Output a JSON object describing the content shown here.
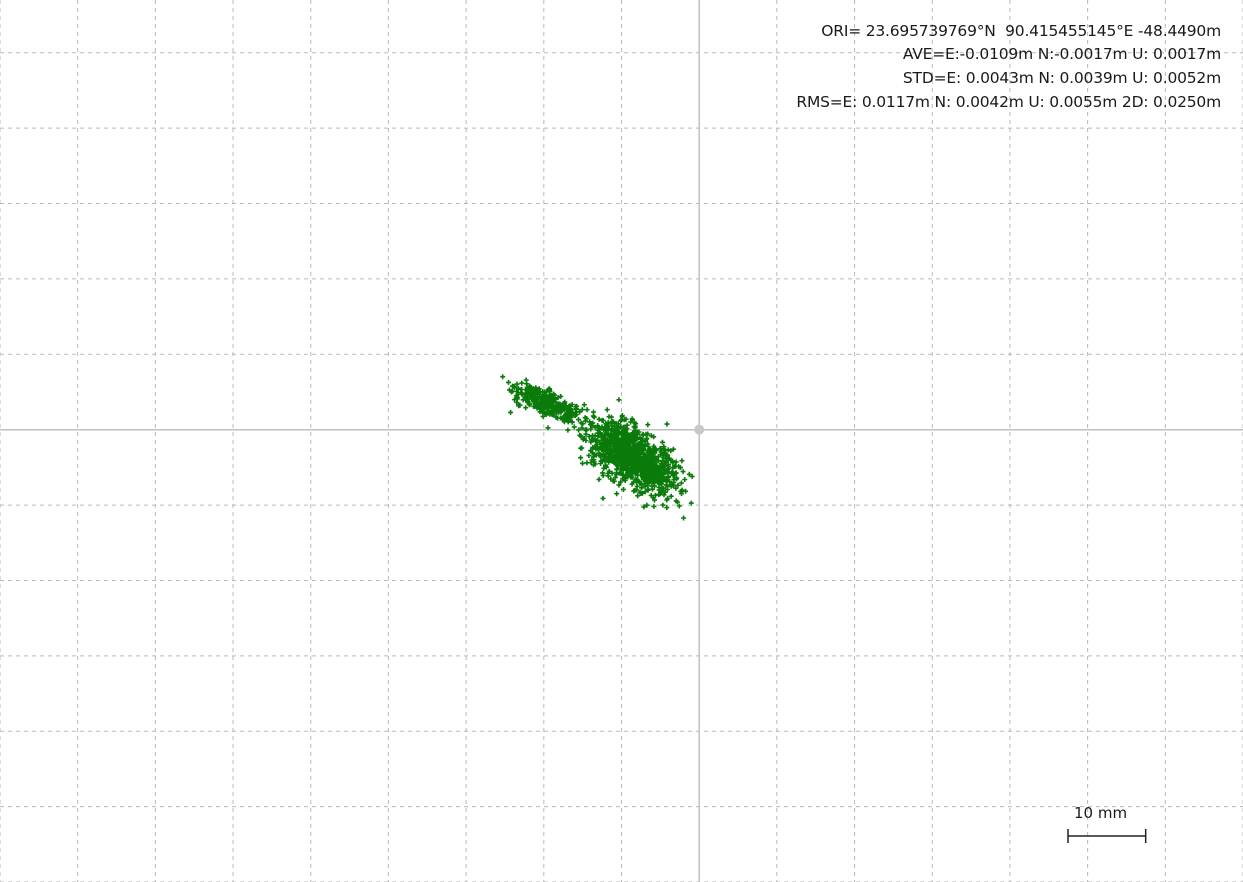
{
  "stats": {
    "ori": "ORI= 23.695739769°N  90.415455145°E -48.4490m",
    "ave": "AVE=E:-0.0109m N:-0.0017m U: 0.0017m",
    "std": "STD=E: 0.0043m N: 0.0039m U: 0.0052m",
    "rms": "RMS=E: 0.0117m N: 0.0042m U: 0.0055m 2D: 0.0250m"
  },
  "scale_bar": {
    "label": "10 mm",
    "length_m": 0.01
  },
  "colors": {
    "points": "#0a7a0a",
    "axes": "#c0c0c0",
    "grid": "#b8b8b8",
    "origin_marker": "#c8c8c8"
  },
  "chart_data": {
    "type": "scatter",
    "title": "",
    "xlabel": "",
    "ylabel": "",
    "grid": true,
    "grid_step_m": 0.01,
    "xlim": [
      -0.09,
      0.07
    ],
    "ylim": [
      -0.06,
      0.057
    ],
    "origin": [
      0,
      0
    ],
    "clusters": [
      {
        "center_e": -0.0195,
        "center_n": 0.0035,
        "spread_e": 0.0025,
        "spread_n": 0.001,
        "count": 320
      },
      {
        "center_e": -0.0095,
        "center_n": -0.003,
        "spread_e": 0.0028,
        "spread_n": 0.0024,
        "count": 800
      },
      {
        "center_e": -0.0055,
        "center_n": -0.0055,
        "spread_e": 0.0022,
        "spread_n": 0.002,
        "count": 260
      }
    ],
    "series": [
      {
        "summary": {
          "ave_e": -0.0109,
          "ave_n": -0.0017,
          "std_e": 0.0043,
          "std_n": 0.0039
        }
      }
    ]
  }
}
